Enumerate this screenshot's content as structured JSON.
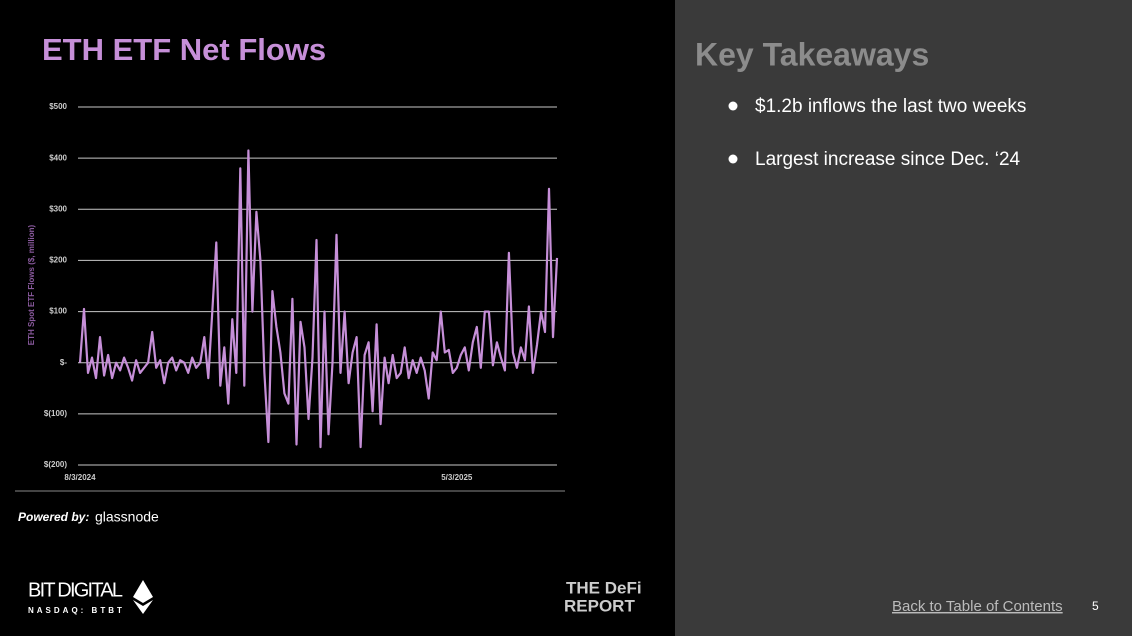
{
  "slide": {
    "powered_by": "Powered by:",
    "provider": "glassnode",
    "company": "BIT DIGITAL",
    "ticker": "NASDAQ: BTBT",
    "report_top": "THE DeFi",
    "report_bottom": "REPORT",
    "takeaways_title": "Key Takeaways",
    "takeaways": [
      "$1.2b inflows the last two weeks",
      "Largest increase since Dec. ‘24"
    ],
    "back_link": "Back to Table of Contents",
    "page_number": "5"
  },
  "chart_data": {
    "type": "line",
    "title": "ETH ETF Net Flows",
    "y_label": "ETH Spot ETF Flows ($, million)",
    "color": "#c68fd8",
    "grid": true,
    "categories": [
      "8/3/2024",
      null,
      null,
      null,
      null,
      null,
      null,
      null,
      null,
      null,
      null,
      null,
      null,
      null,
      null,
      null,
      null,
      null,
      null,
      null,
      null,
      null,
      null,
      null,
      null,
      null,
      null,
      null,
      null,
      null,
      null,
      null,
      null,
      null,
      null,
      null,
      null,
      null,
      null,
      null,
      null,
      null,
      null,
      null,
      null,
      null,
      null,
      null,
      null,
      null,
      null,
      null,
      null,
      null,
      null,
      null,
      null,
      null,
      null,
      null,
      null,
      null,
      null,
      null,
      null,
      null,
      null,
      null,
      null,
      null,
      null,
      null,
      null,
      null,
      null,
      null,
      null,
      null,
      null,
      null,
      null,
      null,
      null,
      null,
      null,
      null,
      null,
      null,
      null,
      null,
      null,
      null,
      null,
      null,
      "5/3/2025",
      null,
      null,
      null,
      null,
      null,
      null,
      null,
      null,
      null,
      null,
      null,
      null,
      null,
      null,
      null,
      null,
      null,
      null,
      null,
      null,
      null,
      null,
      null,
      null,
      null
    ],
    "values": [
      0,
      105,
      -20,
      10,
      -30,
      50,
      -25,
      15,
      -30,
      0,
      -15,
      10,
      -10,
      -35,
      5,
      -20,
      -10,
      0,
      60,
      -10,
      5,
      -40,
      0,
      10,
      -15,
      5,
      0,
      -20,
      10,
      -10,
      0,
      50,
      -30,
      100,
      235,
      -45,
      30,
      -80,
      85,
      -20,
      380,
      -45,
      415,
      100,
      295,
      200,
      -20,
      -155,
      140,
      70,
      20,
      -60,
      -80,
      125,
      -160,
      80,
      30,
      -110,
      10,
      240,
      -165,
      100,
      -140,
      0,
      250,
      -20,
      100,
      -40,
      20,
      50,
      -165,
      15,
      40,
      -95,
      75,
      -120,
      10,
      -40,
      15,
      -30,
      -20,
      30,
      -30,
      5,
      -20,
      10,
      -15,
      -70,
      20,
      5,
      100,
      20,
      25,
      -20,
      -10,
      15,
      30,
      -15,
      40,
      70,
      -10,
      100,
      100,
      -5,
      40,
      10,
      -15,
      215,
      20,
      -10,
      30,
      5,
      110,
      -20,
      35,
      100,
      60,
      340,
      50,
      205
    ],
    "ylim": [
      -200,
      500
    ],
    "yticks": [
      {
        "value": -200,
        "label": "$(200)"
      },
      {
        "value": -100,
        "label": "$(100)"
      },
      {
        "value": 0,
        "label": "$-"
      },
      {
        "value": 100,
        "label": "$100"
      },
      {
        "value": 200,
        "label": "$200"
      },
      {
        "value": 300,
        "label": "$300"
      },
      {
        "value": 400,
        "label": "$400"
      },
      {
        "value": 500,
        "label": "$500"
      }
    ]
  }
}
